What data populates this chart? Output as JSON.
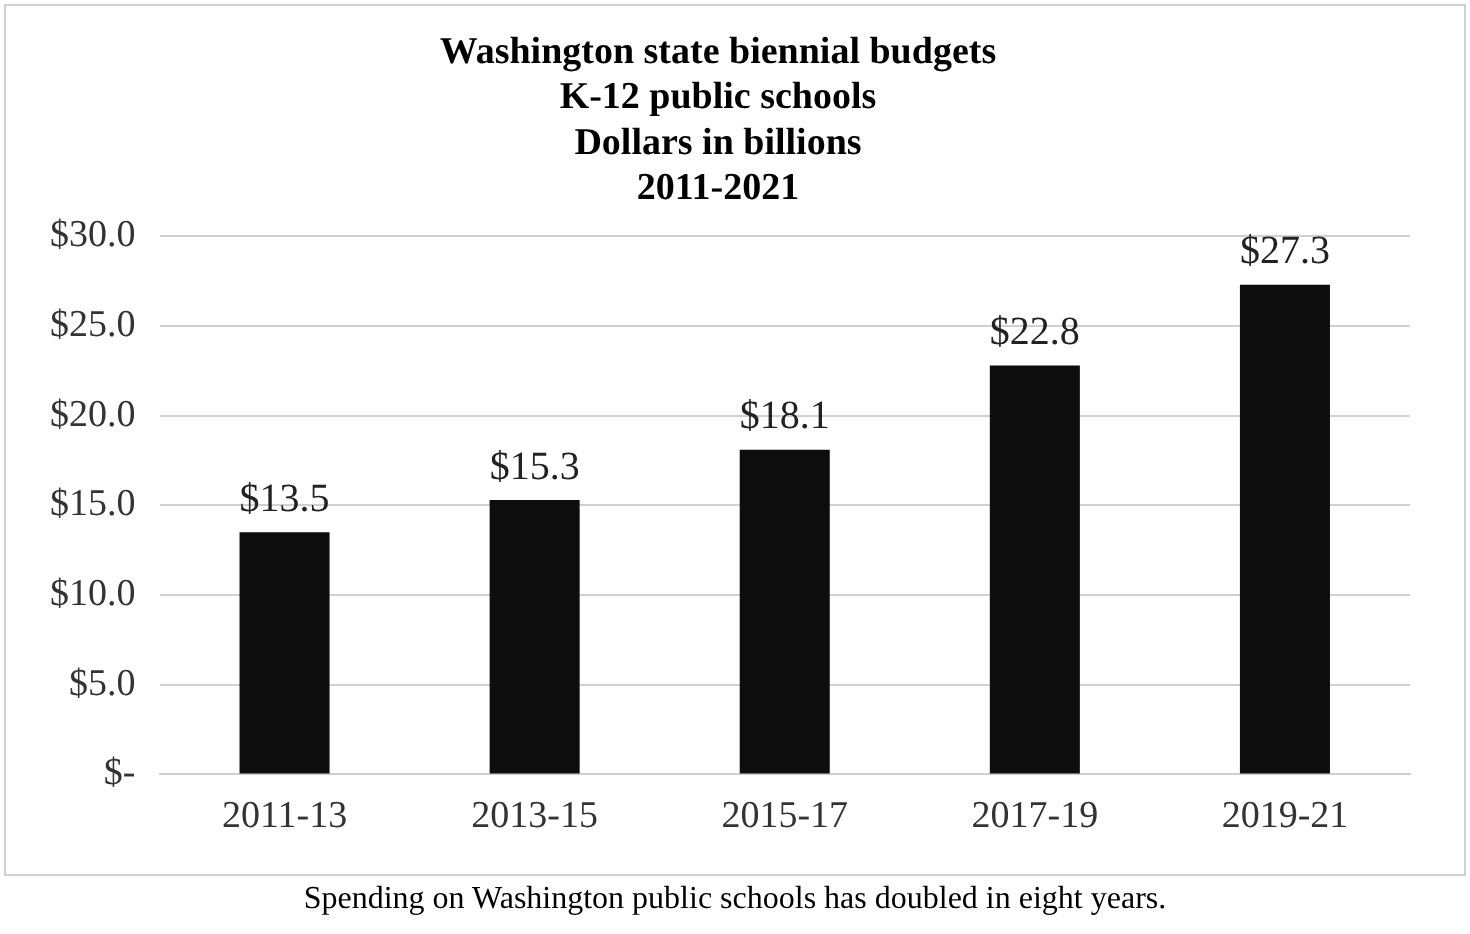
{
  "chart_data": {
    "type": "bar",
    "title": "Washington state biennial budgets\nK-12 public schools\nDollars in billions\n2011-2021",
    "categories": [
      "2011-13",
      "2013-15",
      "2015-17",
      "2017-19",
      "2019-21"
    ],
    "values": [
      13.5,
      15.3,
      18.1,
      22.8,
      27.3
    ],
    "value_labels": [
      "$13.5",
      "$15.3",
      "$18.1",
      "$22.8",
      "$27.3"
    ],
    "color": "#0d0d0d",
    "ylim": [
      0,
      30
    ],
    "yticks": [
      {
        "value": 0,
        "label": "$-"
      },
      {
        "value": 5,
        "label": "$5.0"
      },
      {
        "value": 10,
        "label": "$10.0"
      },
      {
        "value": 15,
        "label": "$15.0"
      },
      {
        "value": 20,
        "label": "$20.0"
      },
      {
        "value": 25,
        "label": "$25.0"
      },
      {
        "value": 30,
        "label": "$30.0"
      }
    ],
    "grid": "y",
    "annotations": [
      "Spending on Washington public schools has doubled in eight years."
    ]
  }
}
